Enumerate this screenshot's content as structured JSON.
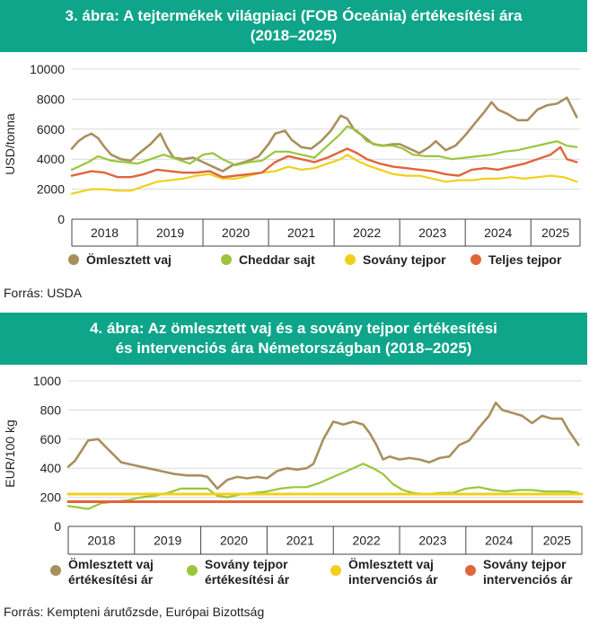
{
  "figure1": {
    "title_line1": "3. ábra: A tejtermékek világpiaci (FOB Óceánia) értékesítési ára",
    "title_line2": "(2018–2025)",
    "source": "Forrás: USDA"
  },
  "figure2": {
    "title_line1": "4. ábra: Az ömlesztett vaj és a sovány tejpor értékesítési",
    "title_line2": "és intervenciós ára Németországban (2018–2025)",
    "source": "Forrás: Kempteni árutőzsde, Európai Bizottság"
  },
  "chart_data": [
    {
      "type": "line",
      "title": "3. ábra: A tejtermékek világpiaci (FOB Óceánia) értékesítési ára (2018–2025)",
      "xlabel": "",
      "ylabel": "USD/tonna",
      "xlim": [
        2018,
        2025.75
      ],
      "ylim": [
        0,
        10000
      ],
      "yticks": [
        "0",
        "2000",
        "4000",
        "6000",
        "8000",
        "10000"
      ],
      "categories": [
        "2018",
        "2019",
        "2020",
        "2021",
        "2022",
        "2023",
        "2024",
        "2025"
      ],
      "grid": true,
      "legend_position": "bottom",
      "series": [
        {
          "name": "Ömlesztett vaj",
          "color": "#a8905e",
          "x": [
            2018.0,
            2018.1,
            2018.2,
            2018.3,
            2018.4,
            2018.5,
            2018.6,
            2018.75,
            2018.9,
            2019.0,
            2019.2,
            2019.35,
            2019.45,
            2019.55,
            2019.7,
            2019.85,
            2020.0,
            2020.15,
            2020.3,
            2020.45,
            2020.55,
            2020.7,
            2020.85,
            2021.0,
            2021.1,
            2021.25,
            2021.35,
            2021.5,
            2021.65,
            2021.8,
            2021.95,
            2022.1,
            2022.2,
            2022.3,
            2022.45,
            2022.6,
            2022.75,
            2022.9,
            2023.0,
            2023.15,
            2023.3,
            2023.45,
            2023.55,
            2023.7,
            2023.85,
            2024.0,
            2024.15,
            2024.3,
            2024.4,
            2024.5,
            2024.65,
            2024.8,
            2024.95,
            2025.1,
            2025.25,
            2025.4,
            2025.55,
            2025.7
          ],
          "values": [
            4700,
            5200,
            5500,
            5700,
            5400,
            4800,
            4300,
            4000,
            3900,
            4300,
            5000,
            5700,
            4800,
            4100,
            4000,
            4100,
            3800,
            3500,
            3200,
            3600,
            3700,
            3900,
            4200,
            5000,
            5700,
            5900,
            5300,
            4800,
            4700,
            5200,
            5900,
            6900,
            6700,
            6000,
            5500,
            5000,
            4900,
            5000,
            5000,
            4700,
            4400,
            4800,
            5200,
            4600,
            4900,
            5600,
            6400,
            7200,
            7800,
            7300,
            7000,
            6600,
            6600,
            7300,
            7600,
            7700,
            8100,
            6800
          ]
        },
        {
          "name": "Cheddar sajt",
          "color": "#9bc53d",
          "x": [
            2018.0,
            2018.1,
            2018.25,
            2018.4,
            2018.6,
            2018.8,
            2019.0,
            2019.2,
            2019.4,
            2019.6,
            2019.8,
            2020.0,
            2020.15,
            2020.3,
            2020.5,
            2020.7,
            2020.9,
            2021.1,
            2021.3,
            2021.5,
            2021.7,
            2021.9,
            2022.1,
            2022.2,
            2022.35,
            2022.5,
            2022.7,
            2022.9,
            2023.05,
            2023.2,
            2023.4,
            2023.6,
            2023.8,
            2024.0,
            2024.2,
            2024.4,
            2024.6,
            2024.8,
            2025.0,
            2025.2,
            2025.4,
            2025.55,
            2025.7
          ],
          "values": [
            3300,
            3500,
            3800,
            4200,
            3900,
            3800,
            3700,
            4000,
            4300,
            4000,
            3700,
            4300,
            4400,
            4000,
            3600,
            3800,
            3900,
            4500,
            4500,
            4300,
            4100,
            4900,
            5700,
            6200,
            5900,
            5200,
            4900,
            4900,
            4700,
            4300,
            4200,
            4200,
            4000,
            4100,
            4200,
            4300,
            4500,
            4600,
            4800,
            5000,
            5200,
            4900,
            4800
          ]
        },
        {
          "name": "Sovány tejpor",
          "color": "#f0d01c",
          "x": [
            2018.0,
            2018.1,
            2018.3,
            2018.5,
            2018.7,
            2018.9,
            2019.1,
            2019.3,
            2019.5,
            2019.7,
            2019.9,
            2020.1,
            2020.3,
            2020.5,
            2020.7,
            2020.9,
            2021.1,
            2021.3,
            2021.5,
            2021.7,
            2021.9,
            2022.1,
            2022.2,
            2022.35,
            2022.5,
            2022.7,
            2022.9,
            2023.1,
            2023.3,
            2023.5,
            2023.7,
            2023.9,
            2024.1,
            2024.3,
            2024.5,
            2024.7,
            2024.9,
            2025.1,
            2025.3,
            2025.5,
            2025.7
          ],
          "values": [
            1700,
            1800,
            2000,
            2000,
            1900,
            1900,
            2200,
            2500,
            2600,
            2700,
            2900,
            3000,
            2700,
            2700,
            2900,
            3100,
            3200,
            3500,
            3300,
            3400,
            3700,
            4000,
            4300,
            3900,
            3600,
            3300,
            3000,
            2900,
            2900,
            2700,
            2500,
            2600,
            2600,
            2700,
            2700,
            2800,
            2700,
            2800,
            2900,
            2800,
            2500
          ]
        },
        {
          "name": "Teljes tejpor",
          "color": "#e0653a",
          "x": [
            2018.0,
            2018.1,
            2018.3,
            2018.5,
            2018.7,
            2018.9,
            2019.1,
            2019.3,
            2019.5,
            2019.7,
            2019.9,
            2020.1,
            2020.3,
            2020.5,
            2020.7,
            2020.9,
            2021.1,
            2021.3,
            2021.5,
            2021.7,
            2021.9,
            2022.1,
            2022.2,
            2022.35,
            2022.5,
            2022.7,
            2022.9,
            2023.1,
            2023.3,
            2023.5,
            2023.7,
            2023.9,
            2024.1,
            2024.3,
            2024.5,
            2024.7,
            2024.9,
            2025.1,
            2025.3,
            2025.45,
            2025.55,
            2025.7
          ],
          "values": [
            2900,
            3000,
            3200,
            3100,
            2800,
            2800,
            3000,
            3300,
            3200,
            3100,
            3100,
            3200,
            2800,
            2900,
            3000,
            3100,
            3800,
            4200,
            4000,
            3800,
            4100,
            4500,
            4700,
            4400,
            4000,
            3700,
            3500,
            3400,
            3300,
            3200,
            3000,
            2900,
            3300,
            3400,
            3300,
            3500,
            3700,
            4000,
            4300,
            4800,
            4000,
            3800
          ]
        }
      ]
    },
    {
      "type": "line",
      "title": "4. ábra: Az ömlesztett vaj és a sovány tejpor értékesítési és intervenciós ára Németországban (2018–2025)",
      "xlabel": "",
      "ylabel": "EUR/100 kg",
      "xlim": [
        2018,
        2025.75
      ],
      "ylim": [
        0,
        1000
      ],
      "yticks": [
        "0",
        "200",
        "400",
        "600",
        "800",
        "1000"
      ],
      "categories": [
        "2018",
        "2019",
        "2020",
        "2021",
        "2022",
        "2023",
        "2024",
        "2025"
      ],
      "grid": true,
      "legend_position": "bottom",
      "series": [
        {
          "name": "Ömlesztett vaj értékesítési ár",
          "legend_line1": "Ömlesztett vaj",
          "legend_line2": "értékesítési ár",
          "color": "#a8905e",
          "x": [
            2018.0,
            2018.1,
            2018.2,
            2018.3,
            2018.45,
            2018.6,
            2018.8,
            2019.0,
            2019.2,
            2019.4,
            2019.6,
            2019.8,
            2020.0,
            2020.1,
            2020.25,
            2020.4,
            2020.55,
            2020.7,
            2020.85,
            2021.0,
            2021.15,
            2021.3,
            2021.45,
            2021.6,
            2021.7,
            2021.85,
            2022.0,
            2022.15,
            2022.3,
            2022.45,
            2022.55,
            2022.65,
            2022.75,
            2022.85,
            2023.0,
            2023.15,
            2023.3,
            2023.45,
            2023.6,
            2023.75,
            2023.9,
            2024.05,
            2024.2,
            2024.35,
            2024.45,
            2024.55,
            2024.7,
            2024.85,
            2025.0,
            2025.15,
            2025.3,
            2025.45,
            2025.55,
            2025.7
          ],
          "values": [
            410,
            450,
            520,
            590,
            600,
            530,
            440,
            420,
            400,
            380,
            360,
            350,
            350,
            340,
            260,
            320,
            340,
            330,
            340,
            330,
            380,
            400,
            390,
            400,
            430,
            600,
            720,
            700,
            720,
            700,
            640,
            560,
            460,
            480,
            460,
            470,
            460,
            440,
            470,
            480,
            560,
            590,
            680,
            760,
            850,
            800,
            780,
            760,
            710,
            760,
            740,
            740,
            660,
            560
          ]
        },
        {
          "name": "Sovány tejpor értékesítési ár",
          "legend_line1": "Sovány tejpor",
          "legend_line2": "értékesítési ár",
          "color": "#9bc53d",
          "x": [
            2018.0,
            2018.15,
            2018.3,
            2018.5,
            2018.7,
            2018.9,
            2019.1,
            2019.3,
            2019.5,
            2019.7,
            2019.9,
            2020.1,
            2020.25,
            2020.4,
            2020.6,
            2020.8,
            2021.0,
            2021.2,
            2021.4,
            2021.6,
            2021.8,
            2022.0,
            2022.15,
            2022.3,
            2022.45,
            2022.6,
            2022.75,
            2022.9,
            2023.05,
            2023.2,
            2023.4,
            2023.6,
            2023.8,
            2024.0,
            2024.2,
            2024.4,
            2024.6,
            2024.8,
            2025.0,
            2025.2,
            2025.4,
            2025.55,
            2025.7
          ],
          "values": [
            140,
            130,
            120,
            160,
            170,
            180,
            200,
            210,
            230,
            260,
            260,
            260,
            210,
            200,
            220,
            230,
            240,
            260,
            270,
            270,
            300,
            340,
            370,
            400,
            430,
            400,
            360,
            290,
            250,
            230,
            220,
            230,
            230,
            260,
            270,
            250,
            240,
            250,
            250,
            240,
            240,
            240,
            230
          ]
        },
        {
          "name": "Ömlesztett vaj intervenciós ár",
          "legend_line1": "Ömlesztett vaj",
          "legend_line2": "intervenciós ár",
          "color": "#f0d01c",
          "x": [
            2018.0,
            2025.75
          ],
          "values": [
            222,
            222
          ]
        },
        {
          "name": "Sovány tejpor intervenciós ár",
          "legend_line1": "Sovány tejpor",
          "legend_line2": "intervenciós ár",
          "color": "#e0653a",
          "x": [
            2018.0,
            2025.75
          ],
          "values": [
            170,
            170
          ]
        }
      ]
    }
  ]
}
